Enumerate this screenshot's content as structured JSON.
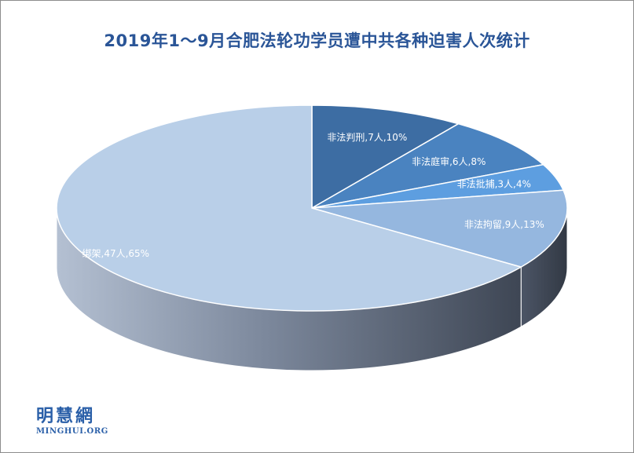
{
  "chart_data": {
    "type": "pie",
    "title": "2019年1～9月合肥法轮功学员遭中共各种迫害人次统计",
    "categories": [
      "非法判刑",
      "非法庭审",
      "非法批捕",
      "非法拘留",
      "绑架"
    ],
    "values": [
      7,
      6,
      3,
      9,
      47
    ],
    "percents": [
      10,
      8,
      4,
      13,
      65
    ],
    "data_labels": [
      "非法判刑,7人,10%",
      "非法庭审,6人,8%",
      "非法批捕,3人,4%",
      "非法拘留,9人,13%",
      "绑架,47人,65%"
    ],
    "colors": [
      "#3d6da3",
      "#4a83c0",
      "#5d9ee0",
      "#95b7df",
      "#b9cfe8"
    ],
    "label_colors": [
      "#ffffff",
      "#ffffff",
      "#ffffff",
      "#ffffff",
      "#ffffff"
    ],
    "style": "3d-pie"
  },
  "logo": {
    "main": "明慧網",
    "sub": "MINGHUI.ORG"
  }
}
